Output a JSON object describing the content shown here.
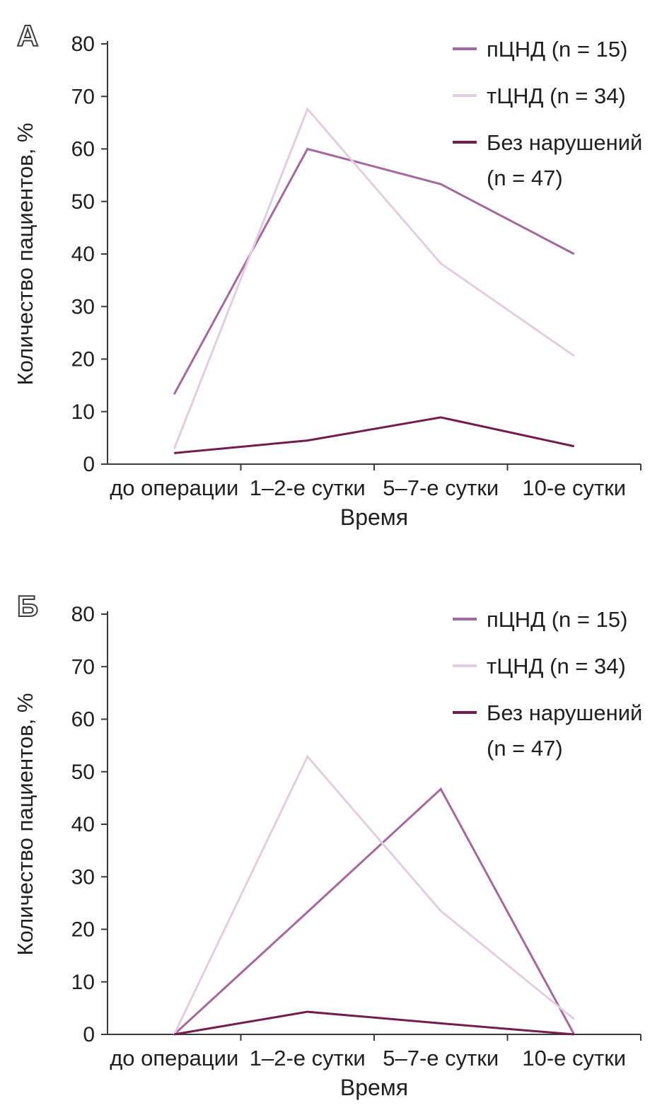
{
  "figure": {
    "panel_a_label": "А",
    "panel_b_label": "Б"
  },
  "chart_data": [
    {
      "type": "line",
      "panel_label": "А",
      "title": "",
      "xlabel": "Время",
      "ylabel": "Количество пациентов, %",
      "ylim": [
        0,
        80
      ],
      "ytick_step": 10,
      "grid": false,
      "legend_position": "top-right",
      "categories": [
        "до операции",
        "1–2-е сутки",
        "5–7-е сутки",
        "10-е сутки"
      ],
      "series": [
        {
          "name": "пЦНД (n = 15)",
          "color": "#a3699c",
          "values": [
            13.3,
            60.0,
            53.3,
            40.0
          ]
        },
        {
          "name": "тЦНД (n = 34)",
          "color": "#e3cde1",
          "values": [
            2.9,
            67.6,
            38.2,
            20.6
          ]
        },
        {
          "name": "Без нарушений (n = 47)",
          "color": "#721c50",
          "values": [
            2.1,
            4.5,
            8.9,
            3.4
          ]
        }
      ],
      "legend": [
        {
          "lines": [
            "пЦНД (n = 15)"
          ],
          "color": "#a3699c"
        },
        {
          "lines": [
            "тЦНД (n = 34)"
          ],
          "color": "#e3cde1"
        },
        {
          "lines": [
            "Без нарушений",
            "(n = 47)"
          ],
          "color": "#721c50"
        }
      ]
    },
    {
      "type": "line",
      "panel_label": "Б",
      "title": "",
      "xlabel": "Время",
      "ylabel": "Количество пациентов, %",
      "ylim": [
        0,
        80
      ],
      "ytick_step": 10,
      "grid": false,
      "legend_position": "top-right",
      "categories": [
        "до операции",
        "1–2-е сутки",
        "5–7-е сутки",
        "10-е сутки"
      ],
      "series": [
        {
          "name": "пЦНД (n = 15)",
          "color": "#a3699c",
          "values": [
            0,
            23.3,
            46.7,
            0
          ]
        },
        {
          "name": "тЦНД (n = 34)",
          "color": "#e3cde1",
          "values": [
            0,
            52.9,
            23.5,
            2.9
          ]
        },
        {
          "name": "Без нарушений (n = 47)",
          "color": "#721c50",
          "values": [
            0,
            4.3,
            2.1,
            0
          ]
        }
      ],
      "legend": [
        {
          "lines": [
            "пЦНД (n = 15)"
          ],
          "color": "#a3699c"
        },
        {
          "lines": [
            "тЦНД (n = 34)"
          ],
          "color": "#e3cde1"
        },
        {
          "lines": [
            "Без нарушений",
            "(n = 47)"
          ],
          "color": "#721c50"
        }
      ]
    }
  ]
}
